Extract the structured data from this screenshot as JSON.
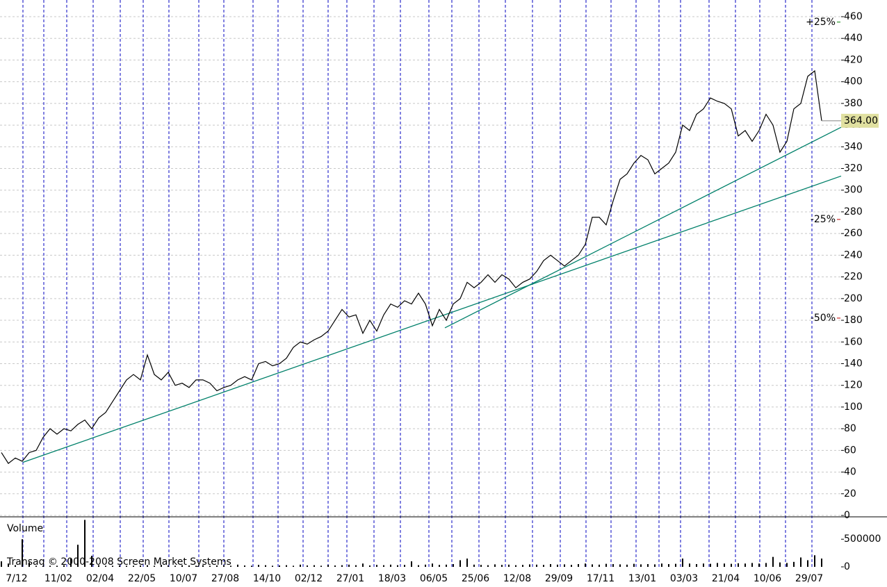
{
  "chart_data": {
    "type": "line",
    "categories": [
      null,
      null,
      "7/12",
      null,
      null,
      null,
      null,
      null,
      "11/02",
      null,
      null,
      null,
      null,
      null,
      "02/04",
      null,
      null,
      null,
      null,
      null,
      "22/05",
      null,
      null,
      null,
      null,
      null,
      "10/07",
      null,
      null,
      null,
      null,
      null,
      "27/08",
      null,
      null,
      null,
      null,
      null,
      "14/10",
      null,
      null,
      null,
      null,
      null,
      "02/12",
      null,
      null,
      null,
      null,
      null,
      "27/01",
      null,
      null,
      null,
      null,
      null,
      "18/03",
      null,
      null,
      null,
      null,
      null,
      "06/05",
      null,
      null,
      null,
      null,
      null,
      "25/06",
      null,
      null,
      null,
      null,
      null,
      "12/08",
      null,
      null,
      null,
      null,
      null,
      "29/09",
      null,
      null,
      null,
      null,
      null,
      "17/11",
      null,
      null,
      null,
      null,
      null,
      "13/01",
      null,
      null,
      null,
      null,
      null,
      "03/03",
      null,
      null,
      null,
      null,
      null,
      "21/04",
      null,
      null,
      null,
      null,
      null,
      "10/06",
      null,
      null,
      null,
      null,
      null,
      "29/07",
      null,
      null
    ],
    "series": [
      {
        "color": "#000000",
        "values": [
          58,
          48,
          53,
          50,
          58,
          60,
          72,
          80,
          75,
          80,
          78,
          84,
          88,
          80,
          90,
          95,
          105,
          115,
          125,
          130,
          125,
          148,
          130,
          125,
          132,
          120,
          122,
          118,
          125,
          125,
          122,
          115,
          118,
          120,
          125,
          128,
          125,
          140,
          142,
          138,
          140,
          145,
          155,
          160,
          158,
          162,
          165,
          170,
          180,
          190,
          183,
          185,
          168,
          180,
          170,
          185,
          195,
          192,
          198,
          195,
          205,
          195,
          175,
          190,
          180,
          195,
          200,
          215,
          210,
          215,
          222,
          215,
          222,
          218,
          210,
          215,
          218,
          225,
          235,
          240,
          235,
          230,
          235,
          240,
          250,
          275,
          275,
          268,
          290,
          310,
          315,
          325,
          332,
          328,
          315,
          320,
          325,
          335,
          360,
          355,
          370,
          375,
          385,
          382,
          380,
          375,
          350,
          355,
          345,
          355,
          370,
          360,
          335,
          345,
          375,
          380,
          405,
          410,
          364
        ]
      }
    ],
    "ylim": [
      0,
      460
    ],
    "yticks": [
      0,
      20,
      40,
      60,
      80,
      100,
      120,
      140,
      160,
      180,
      200,
      220,
      240,
      260,
      280,
      300,
      320,
      340,
      360,
      380,
      400,
      420,
      440,
      460
    ],
    "grid": true,
    "current_price": {
      "value": 364,
      "label": "364.00"
    },
    "percent_levels": [
      {
        "value": 25,
        "label": "+25%",
        "color": "#008000"
      },
      {
        "value": -25,
        "label": "-25%",
        "color": "#c00000"
      },
      {
        "value": -50,
        "label": "-50%",
        "color": "#c00000"
      }
    ],
    "trendlines": [
      {
        "color": "#00806a",
        "x": [
          3.1,
          120.8
        ],
        "values": [
          49,
          313
        ]
      },
      {
        "color": "#00806a",
        "x": [
          63.8,
          120.8
        ],
        "values": [
          173,
          358
        ]
      }
    ],
    "volume": {
      "title": "Volume",
      "color": "#000000",
      "values": [
        100000,
        60000,
        30000,
        500000,
        80000,
        20000,
        20000,
        20000,
        20000,
        30000,
        150000,
        400000,
        850000,
        200000,
        30000,
        20000,
        20000,
        25000,
        20000,
        20000,
        25000,
        30000,
        20000,
        35000,
        25000,
        20000,
        30000,
        25000,
        20000,
        30000,
        20000,
        25000,
        30000,
        20000,
        40000,
        25000,
        20000,
        35000,
        30000,
        20000,
        25000,
        30000,
        20000,
        40000,
        25000,
        30000,
        20000,
        35000,
        25000,
        30000,
        40000,
        30000,
        60000,
        25000,
        35000,
        30000,
        40000,
        30000,
        35000,
        100000,
        30000,
        40000,
        60000,
        35000,
        40000,
        50000,
        120000,
        150000,
        40000,
        35000,
        30000,
        45000,
        35000,
        40000,
        30000,
        35000,
        45000,
        40000,
        35000,
        50000,
        40000,
        45000,
        35000,
        50000,
        60000,
        45000,
        40000,
        55000,
        50000,
        45000,
        40000,
        55000,
        45000,
        50000,
        45000,
        60000,
        50000,
        55000,
        150000,
        60000,
        50000,
        60000,
        55000,
        70000,
        60000,
        55000,
        65000,
        60000,
        70000,
        60000,
        70000,
        180000,
        80000,
        70000,
        90000,
        170000,
        120000,
        210000,
        150000
      ],
      "ylim": [
        0,
        930000
      ],
      "yticks": [
        0,
        500000
      ]
    },
    "footer": "Transaq © 2000-2008 Screen Market Systems"
  }
}
